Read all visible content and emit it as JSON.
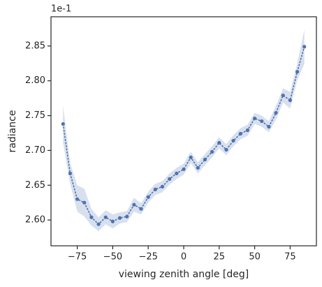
{
  "chart_data": {
    "type": "line",
    "xlabel": "viewing zenith angle [deg]",
    "ylabel": "radiance",
    "y_offset_label": "1e-1",
    "x": [
      -85,
      -80,
      -75,
      -70,
      -65,
      -60,
      -55,
      -50,
      -45,
      -40,
      -35,
      -30,
      -25,
      -20,
      -15,
      -10,
      -5,
      0,
      5,
      10,
      15,
      20,
      25,
      30,
      35,
      40,
      45,
      50,
      55,
      60,
      65,
      70,
      75,
      80,
      85
    ],
    "series": [
      {
        "color": "#4c72b0",
        "values": [
          2.738,
          2.667,
          2.63,
          2.625,
          2.604,
          2.594,
          2.604,
          2.598,
          2.603,
          2.605,
          2.622,
          2.616,
          2.633,
          2.644,
          2.648,
          2.659,
          2.667,
          2.673,
          2.69,
          2.675,
          2.687,
          2.698,
          2.711,
          2.701,
          2.714,
          2.724,
          2.729,
          2.746,
          2.742,
          2.734,
          2.754,
          2.779,
          2.772,
          2.813,
          2.849
        ],
        "lower": [
          2.711,
          2.652,
          2.612,
          2.605,
          2.592,
          2.584,
          2.594,
          2.588,
          2.595,
          2.597,
          2.612,
          2.608,
          2.625,
          2.636,
          2.64,
          2.651,
          2.659,
          2.665,
          2.682,
          2.667,
          2.679,
          2.69,
          2.703,
          2.693,
          2.706,
          2.716,
          2.721,
          2.738,
          2.734,
          2.726,
          2.744,
          2.769,
          2.76,
          2.801,
          2.824
        ],
        "upper": [
          2.765,
          2.682,
          2.65,
          2.645,
          2.616,
          2.604,
          2.614,
          2.608,
          2.611,
          2.613,
          2.632,
          2.624,
          2.641,
          2.652,
          2.656,
          2.667,
          2.675,
          2.681,
          2.698,
          2.683,
          2.695,
          2.706,
          2.719,
          2.709,
          2.722,
          2.732,
          2.737,
          2.754,
          2.75,
          2.742,
          2.764,
          2.789,
          2.784,
          2.825,
          2.874
        ]
      }
    ],
    "xlim": [
      -93.5,
      93.5
    ],
    "xticks": [
      {
        "value": -75,
        "label": "−75"
      },
      {
        "value": -50,
        "label": "−50"
      },
      {
        "value": -25,
        "label": "−25"
      },
      0,
      25,
      50,
      75
    ],
    "ylim": [
      2.563,
      2.892
    ],
    "yticks": [
      {
        "value": 2.6,
        "label": "2.60"
      },
      2.65,
      {
        "value": 2.7,
        "label": "2.70"
      },
      2.75,
      {
        "value": 2.8,
        "label": "2.80"
      },
      2.85
    ]
  }
}
